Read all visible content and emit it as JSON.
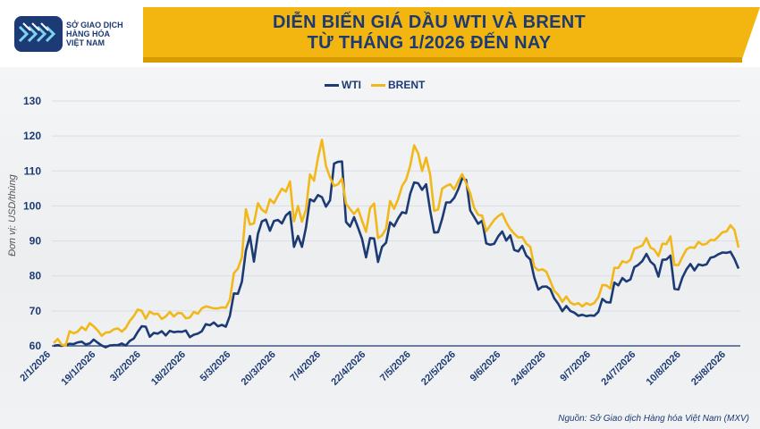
{
  "header": {
    "title_line1": "DIỄN BIẾN GIÁ DẦU WTI VÀ BRENT",
    "title_line2": "TỪ THÁNG 1/2026 ĐẾN NAY",
    "logo_line1": "SỞ GIAO DỊCH",
    "logo_line2": "HÀNG HÓA",
    "logo_line3": "VIỆT NAM",
    "banner_color": "#f3b50f",
    "title_color": "#1c3a73"
  },
  "source": "Nguồn: Sở Giao dịch Hàng hóa Việt Nam (MXV)",
  "chart_data": {
    "type": "line",
    "title": "DIỄN BIẾN GIÁ DẦU WTI VÀ BRENT TỪ THÁNG 1/2026 ĐẾN NAY",
    "xlabel": "",
    "ylabel": "Đơn vị: USD/thùng",
    "ylim": [
      60,
      130
    ],
    "yticks": [
      60,
      70,
      80,
      90,
      100,
      110,
      120,
      130
    ],
    "grid": true,
    "legend_position": "top-center",
    "x_tick_labels": [
      "2/1/2026",
      "19/1/2026",
      "3/2/2026",
      "18/2/2026",
      "5/3/2026",
      "20/3/2026",
      "7/4/2026",
      "22/4/2026",
      "7/5/2026",
      "22/5/2026",
      "9/6/2026",
      "24/6/2026",
      "9/7/2026",
      "24/7/2026",
      "10/8/2026",
      "25/8/2026"
    ],
    "series": [
      {
        "name": "WTI",
        "color": "#1c3a73",
        "values": [
          60.0,
          60.2,
          60.0,
          60.3,
          60.6,
          60.5,
          61.0,
          61.2,
          60.4,
          60.7,
          61.8,
          60.9,
          60.1,
          59.6,
          60.1,
          60.2,
          60.2,
          60.7,
          60.1,
          61.4,
          62.1,
          64.0,
          65.6,
          65.5,
          62.6,
          63.7,
          63.5,
          64.2,
          63.0,
          64.3,
          63.9,
          64.1,
          64.0,
          64.4,
          62.5,
          63.2,
          63.5,
          64.2,
          66.2,
          65.9,
          66.7,
          65.6,
          66.0,
          65.5,
          68.6,
          75.0,
          74.9,
          78.3,
          87.2,
          91.4,
          84.1,
          92.0,
          95.6,
          96.1,
          92.9,
          95.7,
          96.0,
          95.0,
          97.3,
          98.3,
          88.3,
          91.4,
          88.3,
          93.8,
          101.9,
          101.3,
          103.1,
          102.5,
          99.8,
          101.6,
          112.1,
          112.6,
          112.7,
          95.4,
          94.1,
          96.8,
          93.8,
          90.6,
          85.3,
          90.8,
          90.7,
          84.0,
          88.3,
          89.5,
          95.3,
          94.2,
          96.4,
          98.2,
          97.9,
          103.4,
          106.7,
          106.5,
          104.6,
          106.2,
          98.7,
          92.4,
          92.5,
          96.3,
          101.0,
          101.0,
          102.3,
          104.7,
          107.9,
          107.4,
          98.7,
          96.8,
          94.9,
          95.8,
          89.3,
          88.9,
          89.2,
          91.3,
          92.7,
          90.1,
          91.6,
          87.4,
          87.0,
          88.6,
          85.8,
          84.7,
          79.6,
          76.1,
          76.9,
          77.0,
          76.2,
          73.6,
          72.0,
          69.9,
          71.4,
          70.0,
          69.5,
          68.6,
          68.9,
          68.5,
          68.7,
          68.6,
          69.7,
          73.4,
          72.5,
          72.4,
          78.1,
          77.3,
          79.4,
          78.4,
          79.0,
          82.5,
          83.2,
          84.3,
          86.3,
          84.1,
          83.1,
          79.8,
          84.6,
          84.7,
          85.8,
          76.3,
          76.1,
          79.6,
          81.9,
          83.4,
          81.6,
          83.3,
          83.0,
          83.3,
          85.2,
          85.5,
          86.2,
          86.7,
          86.6,
          86.9,
          84.8,
          82.1
        ]
      },
      {
        "name": "BRENT",
        "color": "#f2b81a",
        "values": [
          60.8,
          62.0,
          60.3,
          60.1,
          64.2,
          63.6,
          64.1,
          65.4,
          64.5,
          66.5,
          65.6,
          64.4,
          62.9,
          63.8,
          63.9,
          64.7,
          65.0,
          64.1,
          65.1,
          67.1,
          68.5,
          70.4,
          70.0,
          67.8,
          69.8,
          69.1,
          69.2,
          67.7,
          68.4,
          69.7,
          68.4,
          69.4,
          69.3,
          67.9,
          68.1,
          69.7,
          69.2,
          70.7,
          71.3,
          71.0,
          70.7,
          70.7,
          71.0,
          70.9,
          73.2,
          80.8,
          82.1,
          85.3,
          99.1,
          94.7,
          95.0,
          100.8,
          98.9,
          98.1,
          101.9,
          100.8,
          103.0,
          104.9,
          104.1,
          107.0,
          95.6,
          100.0,
          95.5,
          98.9,
          109.0,
          107.2,
          113.7,
          118.9,
          111.4,
          108.2,
          105.7,
          106.2,
          107.8,
          100.7,
          99.1,
          97.7,
          99.2,
          95.8,
          92.6,
          99.4,
          100.7,
          90.8,
          91.6,
          93.5,
          101.4,
          99.2,
          101.9,
          105.7,
          107.5,
          111.4,
          117.3,
          115.1,
          110.0,
          113.8,
          108.9,
          98.6,
          99.0,
          104.9,
          105.7,
          106.2,
          104.7,
          107.0,
          109.1,
          106.5,
          103.6,
          99.4,
          97.5,
          97.2,
          92.8,
          94.4,
          96.0,
          97.1,
          97.8,
          95.3,
          93.4,
          92.1,
          91.0,
          91.1,
          89.2,
          88.3,
          82.6,
          81.6,
          81.9,
          81.2,
          78.5,
          75.7,
          74.6,
          72.6,
          74.1,
          72.4,
          71.8,
          72.2,
          71.3,
          72.2,
          71.7,
          72.3,
          73.9,
          77.4,
          77.3,
          76.4,
          82.3,
          82.3,
          84.2,
          83.8,
          84.6,
          87.8,
          88.2,
          88.7,
          90.8,
          88.1,
          87.5,
          85.7,
          89.2,
          89.1,
          91.3,
          83.1,
          83.1,
          85.5,
          87.6,
          88.2,
          88.0,
          89.7,
          88.9,
          89.2,
          90.3,
          90.2,
          91.3,
          92.5,
          92.7,
          94.5,
          93.1,
          88.1
        ]
      }
    ]
  }
}
